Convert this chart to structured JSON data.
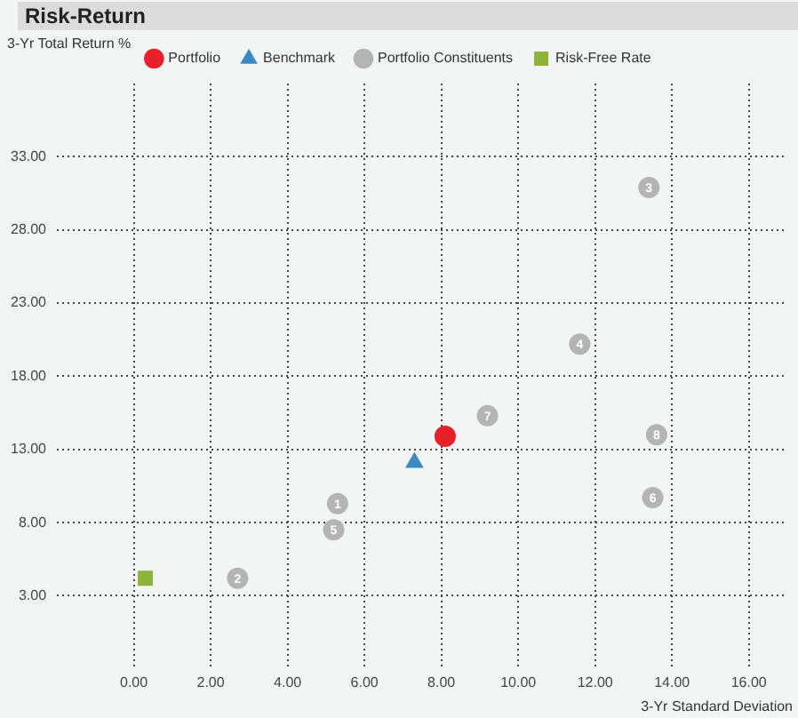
{
  "chart_data": {
    "type": "scatter",
    "title": "Risk-Return",
    "xlabel": "3-Yr Standard Deviation",
    "ylabel": "3-Yr Total Return %",
    "xlim": [
      -2,
      17
    ],
    "ylim": [
      -2,
      38
    ],
    "xticks": [
      {
        "value": 0,
        "label": "0.00"
      },
      {
        "value": 2,
        "label": "2.00"
      },
      {
        "value": 4,
        "label": "4.00"
      },
      {
        "value": 6,
        "label": "6.00"
      },
      {
        "value": 8,
        "label": "8.00"
      },
      {
        "value": 10,
        "label": "10.00"
      },
      {
        "value": 12,
        "label": "12.00"
      },
      {
        "value": 14,
        "label": "14.00"
      },
      {
        "value": 16,
        "label": "16.00"
      }
    ],
    "yticks": [
      {
        "value": 3,
        "label": "3.00"
      },
      {
        "value": 8,
        "label": "8.00"
      },
      {
        "value": 13,
        "label": "13.00"
      },
      {
        "value": 18,
        "label": "18.00"
      },
      {
        "value": 23,
        "label": "23.00"
      },
      {
        "value": 28,
        "label": "28.00"
      },
      {
        "value": 33,
        "label": "33.00"
      }
    ],
    "grid": true,
    "legend": "top",
    "annotations": [
      {
        "text": "1",
        "x": 5.3,
        "y": 9.3
      },
      {
        "text": "2",
        "x": 2.7,
        "y": 4.2
      },
      {
        "text": "3",
        "x": 13.4,
        "y": 30.9
      },
      {
        "text": "4",
        "x": 11.6,
        "y": 20.2
      },
      {
        "text": "5",
        "x": 5.2,
        "y": 7.5
      },
      {
        "text": "6",
        "x": 13.5,
        "y": 9.7
      },
      {
        "text": "7",
        "x": 9.2,
        "y": 15.3
      },
      {
        "text": "8",
        "x": 13.6,
        "y": 14.0
      }
    ],
    "series": [
      {
        "name": "Portfolio",
        "color": "#e8202a",
        "marker": "circle",
        "x": [
          8.1
        ],
        "values": [
          13.9
        ]
      },
      {
        "name": "Benchmark",
        "color": "#3a8ac4",
        "marker": "triangle",
        "x": [
          7.3
        ],
        "values": [
          12.1
        ]
      },
      {
        "name": "Portfolio Constituents",
        "color": "#b4b4b4",
        "marker": "circle",
        "x": [
          5.3,
          2.7,
          13.4,
          11.6,
          5.2,
          13.5,
          9.2,
          13.6
        ],
        "values": [
          9.3,
          4.2,
          30.9,
          20.2,
          7.5,
          9.7,
          15.3,
          14.0
        ]
      },
      {
        "name": "Risk-Free Rate",
        "color": "#8db33a",
        "marker": "square",
        "x": [
          0.3
        ],
        "values": [
          4.2
        ]
      }
    ]
  }
}
